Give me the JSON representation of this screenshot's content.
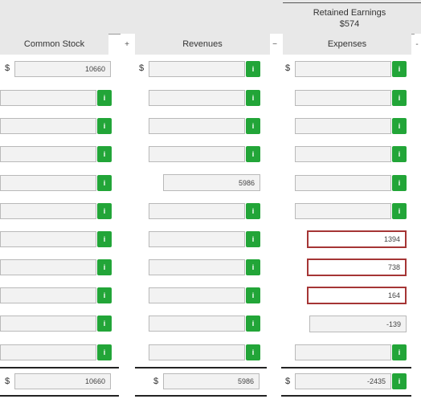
{
  "header": {
    "re_title": "Retained Earnings",
    "re_value": "$574",
    "col_common": "Common Stock",
    "col_revenues": "Revenues",
    "col_expenses": "Expenses",
    "op_plus": "+",
    "op_minus": "−",
    "op_dash": "-"
  },
  "currency": "$",
  "info_glyph": "i",
  "colors": {
    "accent": "#22a538",
    "error": "#a53535",
    "field_bg": "#f2f2f2",
    "header_bg": "#e8e8e8"
  },
  "rows": [
    {
      "common": "10660",
      "revenues": "",
      "expenses": ""
    },
    {
      "common": "",
      "revenues": "",
      "expenses": ""
    },
    {
      "common": "",
      "revenues": "",
      "expenses": ""
    },
    {
      "common": "",
      "revenues": "",
      "expenses": ""
    },
    {
      "common": "",
      "revenues": "5986",
      "expenses": ""
    },
    {
      "common": "",
      "revenues": "",
      "expenses": ""
    },
    {
      "common": "",
      "revenues": "",
      "expenses": "1394"
    },
    {
      "common": "",
      "revenues": "",
      "expenses": "738"
    },
    {
      "common": "",
      "revenues": "",
      "expenses": "164"
    },
    {
      "common": "",
      "revenues": "",
      "expenses": "-139"
    },
    {
      "common": "",
      "revenues": "",
      "expenses": ""
    }
  ],
  "totals": {
    "common": "10660",
    "revenues": "5986",
    "expenses": "-2435"
  }
}
